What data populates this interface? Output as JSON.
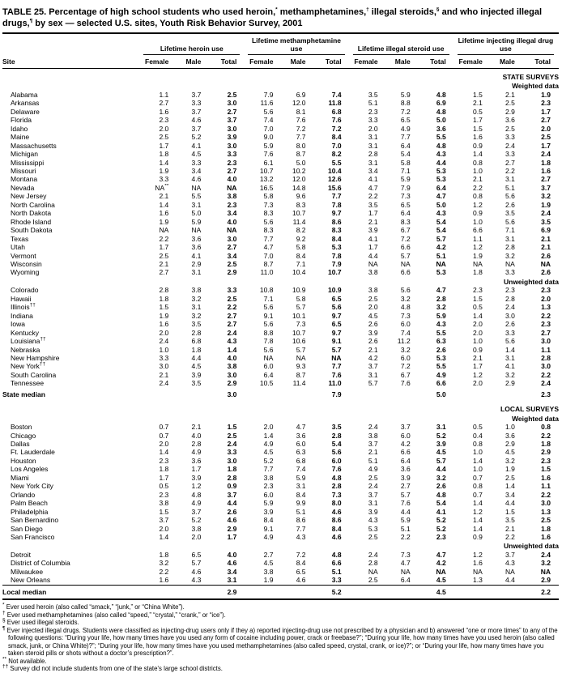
{
  "title": "TABLE 25. Percentage of high school students who used heroin,* methamphetamines,† illegal steroids,§ and who injected illegal drugs,¶ by sex — selected U.S. sites, Youth Risk Behavior Survey, 2001",
  "table": {
    "site_header": "Site",
    "groups": [
      {
        "label": "Lifetime heroin use"
      },
      {
        "label": "Lifetime methamphetamine use"
      },
      {
        "label": "Lifetime illegal steroid use"
      },
      {
        "label": "Lifetime injecting illegal drug use"
      }
    ],
    "sub_headers": [
      "Female",
      "Male",
      "Total"
    ],
    "body": [
      {
        "kind": "section",
        "label": "STATE SURVEYS"
      },
      {
        "kind": "subsection",
        "label": "Weighted data"
      },
      {
        "kind": "data",
        "site": "Alabama",
        "values": [
          "1.1",
          "3.7",
          "2.5",
          "7.9",
          "6.9",
          "7.4",
          "3.5",
          "5.9",
          "4.8",
          "1.5",
          "2.1",
          "1.9"
        ]
      },
      {
        "kind": "data",
        "site": "Arkansas",
        "values": [
          "2.7",
          "3.3",
          "3.0",
          "11.6",
          "12.0",
          "11.8",
          "5.1",
          "8.8",
          "6.9",
          "2.1",
          "2.5",
          "2.3"
        ]
      },
      {
        "kind": "data",
        "site": "Delaware",
        "values": [
          "1.6",
          "3.7",
          "2.7",
          "5.6",
          "8.1",
          "6.8",
          "2.3",
          "7.2",
          "4.8",
          "0.5",
          "2.9",
          "1.7"
        ]
      },
      {
        "kind": "data",
        "site": "Florida",
        "values": [
          "2.3",
          "4.6",
          "3.7",
          "7.4",
          "7.6",
          "7.6",
          "3.3",
          "6.5",
          "5.0",
          "1.7",
          "3.6",
          "2.7"
        ]
      },
      {
        "kind": "data",
        "site": "Idaho",
        "values": [
          "2.0",
          "3.7",
          "3.0",
          "7.0",
          "7.2",
          "7.2",
          "2.0",
          "4.9",
          "3.6",
          "1.5",
          "2.5",
          "2.0"
        ]
      },
      {
        "kind": "data",
        "site": "Maine",
        "values": [
          "2.5",
          "5.2",
          "3.9",
          "9.0",
          "7.7",
          "8.4",
          "3.1",
          "7.7",
          "5.5",
          "1.6",
          "3.3",
          "2.5"
        ]
      },
      {
        "kind": "data",
        "site": "Massachusetts",
        "values": [
          "1.7",
          "4.1",
          "3.0",
          "5.9",
          "8.0",
          "7.0",
          "3.1",
          "6.4",
          "4.8",
          "0.9",
          "2.4",
          "1.7"
        ]
      },
      {
        "kind": "data",
        "site": "Michigan",
        "values": [
          "1.8",
          "4.5",
          "3.3",
          "7.6",
          "8.7",
          "8.2",
          "2.8",
          "5.4",
          "4.3",
          "1.4",
          "3.3",
          "2.4"
        ]
      },
      {
        "kind": "data",
        "site": "Mississippi",
        "values": [
          "1.4",
          "3.3",
          "2.3",
          "6.1",
          "5.0",
          "5.5",
          "3.1",
          "5.8",
          "4.4",
          "0.8",
          "2.7",
          "1.8"
        ]
      },
      {
        "kind": "data",
        "site": "Missouri",
        "values": [
          "1.9",
          "3.4",
          "2.7",
          "10.7",
          "10.2",
          "10.4",
          "3.4",
          "7.1",
          "5.3",
          "1.0",
          "2.2",
          "1.6"
        ]
      },
      {
        "kind": "data",
        "site": "Montana",
        "values": [
          "3.3",
          "4.6",
          "4.0",
          "13.2",
          "12.0",
          "12.6",
          "4.1",
          "5.9",
          "5.3",
          "2.1",
          "3.1",
          "2.7"
        ]
      },
      {
        "kind": "data",
        "site": "Nevada",
        "values": [
          "NA**",
          "NA",
          "NA",
          "16.5",
          "14.8",
          "15.6",
          "4.7",
          "7.9",
          "6.4",
          "2.2",
          "5.1",
          "3.7"
        ]
      },
      {
        "kind": "data",
        "site": "New Jersey",
        "values": [
          "2.1",
          "5.5",
          "3.8",
          "5.8",
          "9.6",
          "7.7",
          "2.2",
          "7.3",
          "4.7",
          "0.8",
          "5.6",
          "3.2"
        ]
      },
      {
        "kind": "data",
        "site": "North Carolina",
        "values": [
          "1.4",
          "3.1",
          "2.3",
          "7.3",
          "8.3",
          "7.8",
          "3.5",
          "6.5",
          "5.0",
          "1.2",
          "2.6",
          "1.9"
        ]
      },
      {
        "kind": "data",
        "site": "North Dakota",
        "values": [
          "1.6",
          "5.0",
          "3.4",
          "8.3",
          "10.7",
          "9.7",
          "1.7",
          "6.4",
          "4.3",
          "0.9",
          "3.5",
          "2.4"
        ]
      },
      {
        "kind": "data",
        "site": "Rhode Island",
        "values": [
          "1.9",
          "5.9",
          "4.0",
          "5.6",
          "11.4",
          "8.6",
          "2.1",
          "8.3",
          "5.4",
          "1.0",
          "5.6",
          "3.5"
        ]
      },
      {
        "kind": "data",
        "site": "South Dakota",
        "values": [
          "NA",
          "NA",
          "NA",
          "8.3",
          "8.2",
          "8.3",
          "3.9",
          "6.7",
          "5.4",
          "6.6",
          "7.1",
          "6.9"
        ]
      },
      {
        "kind": "data",
        "site": "Texas",
        "values": [
          "2.2",
          "3.6",
          "3.0",
          "7.7",
          "9.2",
          "8.4",
          "4.1",
          "7.2",
          "5.7",
          "1.1",
          "3.1",
          "2.1"
        ]
      },
      {
        "kind": "data",
        "site": "Utah",
        "values": [
          "1.7",
          "3.6",
          "2.7",
          "4.7",
          "5.8",
          "5.3",
          "1.7",
          "6.6",
          "4.2",
          "1.2",
          "2.8",
          "2.1"
        ]
      },
      {
        "kind": "data",
        "site": "Vermont",
        "values": [
          "2.5",
          "4.1",
          "3.4",
          "7.0",
          "8.4",
          "7.8",
          "4.4",
          "5.7",
          "5.1",
          "1.9",
          "3.2",
          "2.6"
        ]
      },
      {
        "kind": "data",
        "site": "Wisconsin",
        "values": [
          "2.1",
          "2.9",
          "2.5",
          "8.7",
          "7.1",
          "7.9",
          "NA",
          "NA",
          "NA",
          "NA",
          "NA",
          "NA"
        ]
      },
      {
        "kind": "data",
        "site": "Wyoming",
        "values": [
          "2.7",
          "3.1",
          "2.9",
          "11.0",
          "10.4",
          "10.7",
          "3.8",
          "6.6",
          "5.3",
          "1.8",
          "3.3",
          "2.6"
        ]
      },
      {
        "kind": "subsection",
        "label": "Unweighted data"
      },
      {
        "kind": "data",
        "site": "Colorado",
        "values": [
          "2.8",
          "3.8",
          "3.3",
          "10.8",
          "10.9",
          "10.9",
          "3.8",
          "5.6",
          "4.7",
          "2.3",
          "2.3",
          "2.3"
        ]
      },
      {
        "kind": "data",
        "site": "Hawaii",
        "values": [
          "1.8",
          "3.2",
          "2.5",
          "7.1",
          "5.8",
          "6.5",
          "2.5",
          "3.2",
          "2.8",
          "1.5",
          "2.8",
          "2.0"
        ]
      },
      {
        "kind": "data",
        "site": "Illinois††",
        "values": [
          "1.5",
          "3.1",
          "2.2",
          "5.6",
          "5.7",
          "5.6",
          "2.0",
          "4.8",
          "3.2",
          "0.5",
          "2.4",
          "1.3"
        ]
      },
      {
        "kind": "data",
        "site": "Indiana",
        "values": [
          "1.9",
          "3.2",
          "2.7",
          "9.1",
          "10.1",
          "9.7",
          "4.5",
          "7.3",
          "5.9",
          "1.4",
          "3.0",
          "2.2"
        ]
      },
      {
        "kind": "data",
        "site": "Iowa",
        "values": [
          "1.6",
          "3.5",
          "2.7",
          "5.6",
          "7.3",
          "6.5",
          "2.6",
          "6.0",
          "4.3",
          "2.0",
          "2.6",
          "2.3"
        ]
      },
      {
        "kind": "data",
        "site": "Kentucky",
        "values": [
          "2.0",
          "2.8",
          "2.4",
          "8.8",
          "10.7",
          "9.7",
          "3.9",
          "7.4",
          "5.5",
          "2.0",
          "3.3",
          "2.7"
        ]
      },
      {
        "kind": "data",
        "site": "Louisiana††",
        "values": [
          "2.4",
          "6.8",
          "4.3",
          "7.8",
          "10.6",
          "9.1",
          "2.6",
          "11.2",
          "6.3",
          "1.0",
          "5.6",
          "3.0"
        ]
      },
      {
        "kind": "data",
        "site": "Nebraska",
        "values": [
          "1.0",
          "1.8",
          "1.4",
          "5.6",
          "5.7",
          "5.7",
          "2.1",
          "3.2",
          "2.6",
          "0.9",
          "1.4",
          "1.1"
        ]
      },
      {
        "kind": "data",
        "site": "New Hampshire",
        "values": [
          "3.3",
          "4.4",
          "4.0",
          "NA",
          "NA",
          "NA",
          "4.2",
          "6.0",
          "5.3",
          "2.1",
          "3.1",
          "2.8"
        ]
      },
      {
        "kind": "data",
        "site": "New York††",
        "values": [
          "3.0",
          "4.5",
          "3.8",
          "6.0",
          "9.3",
          "7.7",
          "3.7",
          "7.2",
          "5.5",
          "1.7",
          "4.1",
          "3.0"
        ]
      },
      {
        "kind": "data",
        "site": "South Carolina",
        "values": [
          "2.1",
          "3.9",
          "3.0",
          "6.4",
          "8.7",
          "7.6",
          "3.1",
          "6.7",
          "4.9",
          "1.2",
          "3.2",
          "2.2"
        ]
      },
      {
        "kind": "data",
        "site": "Tennessee",
        "values": [
          "2.4",
          "3.5",
          "2.9",
          "10.5",
          "11.4",
          "11.0",
          "5.7",
          "7.6",
          "6.6",
          "2.0",
          "2.9",
          "2.4"
        ]
      },
      {
        "kind": "median",
        "label": "State median",
        "totals": [
          "3.0",
          "7.9",
          "5.0",
          "2.3"
        ]
      },
      {
        "kind": "section",
        "label": "LOCAL SURVEYS"
      },
      {
        "kind": "subsection",
        "label": "Weighted data"
      },
      {
        "kind": "data",
        "site": "Boston",
        "values": [
          "0.7",
          "2.1",
          "1.5",
          "2.0",
          "4.7",
          "3.5",
          "2.4",
          "3.7",
          "3.1",
          "0.5",
          "1.0",
          "0.8"
        ]
      },
      {
        "kind": "data",
        "site": "Chicago",
        "values": [
          "0.7",
          "4.0",
          "2.5",
          "1.4",
          "3.6",
          "2.8",
          "3.8",
          "6.0",
          "5.2",
          "0.4",
          "3.6",
          "2.2"
        ]
      },
      {
        "kind": "data",
        "site": "Dallas",
        "values": [
          "2.0",
          "2.8",
          "2.4",
          "4.9",
          "6.0",
          "5.4",
          "3.7",
          "4.2",
          "3.9",
          "0.8",
          "2.9",
          "1.8"
        ]
      },
      {
        "kind": "data",
        "site": "Ft. Lauderdale",
        "values": [
          "1.4",
          "4.9",
          "3.3",
          "4.5",
          "6.3",
          "5.6",
          "2.1",
          "6.6",
          "4.5",
          "1.0",
          "4.5",
          "2.9"
        ]
      },
      {
        "kind": "data",
        "site": "Houston",
        "values": [
          "2.3",
          "3.6",
          "3.0",
          "5.2",
          "6.8",
          "6.0",
          "5.1",
          "6.4",
          "5.7",
          "1.4",
          "3.2",
          "2.3"
        ]
      },
      {
        "kind": "data",
        "site": "Los Angeles",
        "values": [
          "1.8",
          "1.7",
          "1.8",
          "7.7",
          "7.4",
          "7.6",
          "4.9",
          "3.6",
          "4.4",
          "1.0",
          "1.9",
          "1.5"
        ]
      },
      {
        "kind": "data",
        "site": "Miami",
        "values": [
          "1.7",
          "3.9",
          "2.8",
          "3.8",
          "5.9",
          "4.8",
          "2.5",
          "3.9",
          "3.2",
          "0.7",
          "2.5",
          "1.6"
        ]
      },
      {
        "kind": "data",
        "site": "New York City",
        "values": [
          "0.5",
          "1.2",
          "0.9",
          "2.3",
          "3.1",
          "2.8",
          "2.4",
          "2.7",
          "2.6",
          "0.8",
          "1.4",
          "1.1"
        ]
      },
      {
        "kind": "data",
        "site": "Orlando",
        "values": [
          "2.3",
          "4.8",
          "3.7",
          "6.0",
          "8.4",
          "7.3",
          "3.7",
          "5.7",
          "4.8",
          "0.7",
          "3.4",
          "2.2"
        ]
      },
      {
        "kind": "data",
        "site": "Palm Beach",
        "values": [
          "3.8",
          "4.9",
          "4.4",
          "5.9",
          "9.9",
          "8.0",
          "3.1",
          "7.6",
          "5.4",
          "1.4",
          "4.4",
          "3.0"
        ]
      },
      {
        "kind": "data",
        "site": "Philadelphia",
        "values": [
          "1.5",
          "3.7",
          "2.6",
          "3.9",
          "5.1",
          "4.6",
          "3.9",
          "4.4",
          "4.1",
          "1.2",
          "1.5",
          "1.3"
        ]
      },
      {
        "kind": "data",
        "site": "San Bernardino",
        "values": [
          "3.7",
          "5.2",
          "4.6",
          "8.4",
          "8.6",
          "8.6",
          "4.3",
          "5.9",
          "5.2",
          "1.4",
          "3.5",
          "2.5"
        ]
      },
      {
        "kind": "data",
        "site": "San Diego",
        "values": [
          "2.0",
          "3.8",
          "2.9",
          "9.1",
          "7.7",
          "8.4",
          "5.3",
          "5.1",
          "5.2",
          "1.4",
          "2.1",
          "1.8"
        ]
      },
      {
        "kind": "data",
        "site": "San Francisco",
        "values": [
          "1.4",
          "2.0",
          "1.7",
          "4.9",
          "4.3",
          "4.6",
          "2.5",
          "2.2",
          "2.3",
          "0.9",
          "2.2",
          "1.6"
        ]
      },
      {
        "kind": "subsection",
        "label": "Unweighted data"
      },
      {
        "kind": "data",
        "site": "Detroit",
        "values": [
          "1.8",
          "6.5",
          "4.0",
          "2.7",
          "7.2",
          "4.8",
          "2.4",
          "7.3",
          "4.7",
          "1.2",
          "3.7",
          "2.4"
        ]
      },
      {
        "kind": "data",
        "site": "District of Columbia",
        "values": [
          "3.2",
          "5.7",
          "4.6",
          "4.5",
          "8.4",
          "6.6",
          "2.8",
          "4.7",
          "4.2",
          "1.6",
          "4.3",
          "3.2"
        ]
      },
      {
        "kind": "data",
        "site": "Milwaukee",
        "values": [
          "2.2",
          "4.6",
          "3.4",
          "3.8",
          "6.5",
          "5.1",
          "NA",
          "NA",
          "NA",
          "NA",
          "NA",
          "NA"
        ]
      },
      {
        "kind": "data",
        "site": "New Orleans",
        "values": [
          "1.6",
          "4.3",
          "3.1",
          "1.9",
          "4.6",
          "3.3",
          "2.5",
          "6.4",
          "4.5",
          "1.3",
          "4.4",
          "2.9"
        ]
      },
      {
        "kind": "median",
        "label": "Local median",
        "totals": [
          "2.9",
          "5.2",
          "4.5",
          "2.2"
        ],
        "rule": true
      }
    ]
  },
  "footnotes": [
    {
      "marker": "*",
      "text": "Ever used heroin (also called “smack,” “junk,” or “China White”)."
    },
    {
      "marker": "†",
      "text": "Ever used methamphetamines (also called “speed,” “crystal,” “crank,” or “ice”)."
    },
    {
      "marker": "§",
      "text": "Ever used illegal steroids."
    },
    {
      "marker": "¶",
      "text": "Ever injected illegal drugs. Students were classified as injecting-drug users only if they a) reported injecting-drug use not prescribed by a physician and b) answered “one or more times” to any of the following questions: “During your life, how many times have you used any form of cocaine including power, crack or freebase?”; “During your life, how many times have you used heroin (also called smack, junk, or China White)?”; “During your life, how many times have you used methamphetamines (also called speed, crystal, crank, or ice)?”; or “During your life, how many times have you taken steroid pills or shots without a doctor’s prescription?”."
    },
    {
      "marker": "**",
      "text": "Not available."
    },
    {
      "marker": "††",
      "text": "Survey did not include students from one of the state’s large school districts."
    }
  ]
}
